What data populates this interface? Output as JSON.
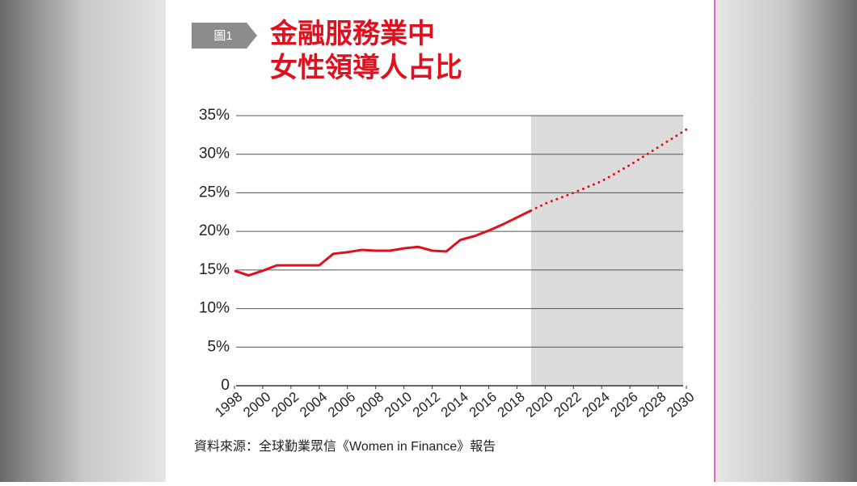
{
  "chart_data": {
    "type": "line",
    "badge": "圖1",
    "title": [
      "金融服務業中",
      "女性領導人占比"
    ],
    "source": "資料來源：全球勤業眾信《Women in Finance》報告",
    "series": [
      {
        "color": "#e0101e",
        "style": "solid",
        "x": [
          1998,
          1999,
          2000,
          2001,
          2002,
          2003,
          2004,
          2005,
          2006,
          2007,
          2008,
          2009,
          2010,
          2011,
          2012,
          2013,
          2014,
          2015,
          2016,
          2017,
          2018,
          2019
        ],
        "values": [
          14.9,
          14.3,
          14.9,
          15.6,
          15.6,
          15.6,
          15.6,
          17.1,
          17.3,
          17.6,
          17.5,
          17.5,
          17.8,
          18.0,
          17.5,
          17.4,
          18.9,
          19.4,
          20.1,
          20.9,
          21.8,
          22.7
        ]
      },
      {
        "color": "#e0101e",
        "style": "dotted",
        "x": [
          2019,
          2020,
          2022,
          2024,
          2026,
          2028,
          2030
        ],
        "values": [
          22.7,
          23.6,
          25.0,
          26.5,
          28.6,
          30.9,
          33.2
        ]
      }
    ],
    "shade_from": 2019,
    "xlim": [
      1998,
      2030
    ],
    "xticks": [
      1998,
      2000,
      2002,
      2004,
      2006,
      2008,
      2010,
      2012,
      2014,
      2016,
      2018,
      2020,
      2022,
      2024,
      2026,
      2028,
      2030
    ],
    "ylim": [
      0,
      35
    ],
    "yticks": [
      0,
      {
        "value": 5,
        "label": "5%"
      },
      {
        "value": 10,
        "label": "10%"
      },
      {
        "value": 15,
        "label": "15%"
      },
      {
        "value": 20,
        "label": "20%"
      },
      {
        "value": 25,
        "label": "25%"
      },
      {
        "value": 30,
        "label": "30%"
      },
      {
        "value": 35,
        "label": "35%"
      }
    ],
    "grid": true
  }
}
